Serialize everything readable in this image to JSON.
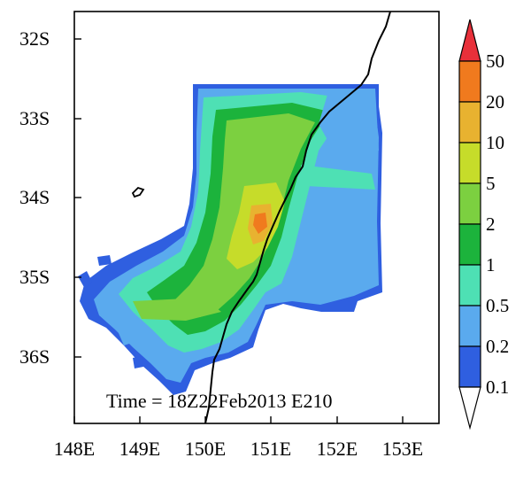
{
  "map": {
    "lat_labels": [
      "32S",
      "33S",
      "34S",
      "35S",
      "36S"
    ],
    "lon_labels": [
      "148E",
      "149E",
      "150E",
      "151E",
      "152E",
      "153E"
    ],
    "time_text": "Time = 18Z22Feb2013 E210"
  },
  "colorbar": {
    "labels": [
      "50",
      "20",
      "10",
      "5",
      "2",
      "1",
      "0.5",
      "0.2",
      "0.1"
    ],
    "colors": [
      "#e8303a",
      "#f07a1e",
      "#e8b230",
      "#c6dc2a",
      "#7cd040",
      "#1cb33c",
      "#4ee0b4",
      "#5aaaee",
      "#2f5fe0",
      "#ffffff"
    ]
  },
  "field_colors": {
    "level_0.1": "#2f5fe0",
    "level_0.2": "#5aaaee",
    "level_0.5": "#4ee0b4",
    "level_1": "#1cb33c",
    "level_2": "#7cd040",
    "level_5": "#c6dc2a",
    "level_10": "#e8b230",
    "level_20": "#f07a1e",
    "coastline": "#000000"
  }
}
